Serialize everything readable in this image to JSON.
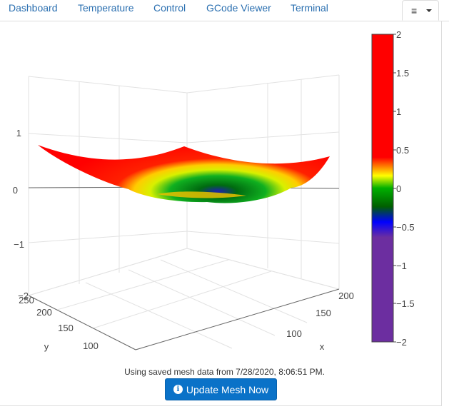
{
  "tabs": [
    {
      "label": "Dashboard"
    },
    {
      "label": "Temperature"
    },
    {
      "label": "Control"
    },
    {
      "label": "GCode Viewer"
    },
    {
      "label": "Terminal"
    }
  ],
  "menu_icon": "list-icon",
  "status_text": "Using saved mesh data from 7/28/2020, 8:06:51 PM.",
  "update_button": {
    "label": "Update Mesh Now",
    "icon": "info-circle-icon"
  },
  "chart_data": {
    "type": "surface",
    "axes": {
      "x": {
        "label": "x",
        "ticks": [
          "100",
          "150",
          "200"
        ]
      },
      "y": {
        "label": "y",
        "ticks": [
          "100",
          "150",
          "200",
          "250"
        ]
      },
      "z": {
        "label": "",
        "ticks": [
          "−2",
          "−1",
          "0",
          "1"
        ],
        "range": [
          -2,
          2
        ]
      }
    },
    "colorbar": {
      "range": [
        -2,
        2
      ],
      "ticks": [
        "2",
        "1.5",
        "1",
        "0.5",
        "0",
        "−0.5",
        "−1",
        "−1.5",
        "−2"
      ],
      "colors": [
        "#ff0000",
        "#ff0000",
        "#ffff00",
        "#00cc00",
        "#006600",
        "#0000ff",
        "#6c2ea0",
        "#6c2ea0"
      ]
    },
    "surface": {
      "description_values": {
        "corner_min": -0.1,
        "corner_max": 0.6,
        "center": -0.3
      }
    }
  }
}
